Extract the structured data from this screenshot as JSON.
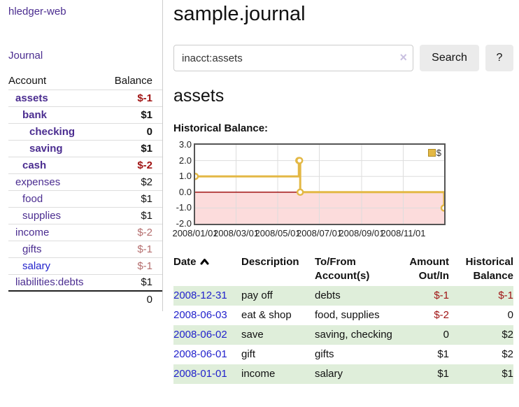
{
  "app": {
    "title": "hledger-web"
  },
  "colors": {
    "link_purple": "#4b2d90",
    "link_blue": "#2222cc",
    "negative_strong": "#a01414",
    "negative_soft": "#b56e6e",
    "row_green": "#dfeeda",
    "chart_line_gold": "#e3b845",
    "chart_negative_fill": "#fcdcdc",
    "chart_zero_line": "#990000"
  },
  "sidebar": {
    "nav": [
      {
        "label": "Journal"
      }
    ],
    "accounts_table": {
      "headers": {
        "account": "Account",
        "balance": "Balance"
      },
      "rows": [
        {
          "name": "assets",
          "balance": "$-1",
          "level": 1,
          "bold": true,
          "neg": "strong",
          "link_color": "purple"
        },
        {
          "name": "bank",
          "balance": "$1",
          "level": 2,
          "bold": true,
          "neg": "none",
          "link_color": "purple"
        },
        {
          "name": "checking",
          "balance": "0",
          "level": 3,
          "bold": true,
          "neg": "none",
          "link_color": "purple"
        },
        {
          "name": "saving",
          "balance": "$1",
          "level": 3,
          "bold": true,
          "neg": "none",
          "link_color": "purple"
        },
        {
          "name": "cash",
          "balance": "$-2",
          "level": 2,
          "bold": true,
          "neg": "strong",
          "link_color": "purple"
        },
        {
          "name": "expenses",
          "balance": "$2",
          "level": 1,
          "bold": false,
          "neg": "none",
          "link_color": "purple"
        },
        {
          "name": "food",
          "balance": "$1",
          "level": 2,
          "bold": false,
          "neg": "none",
          "link_color": "purple"
        },
        {
          "name": "supplies",
          "balance": "$1",
          "level": 2,
          "bold": false,
          "neg": "none",
          "link_color": "purple"
        },
        {
          "name": "income",
          "balance": "$-2",
          "level": 1,
          "bold": false,
          "neg": "soft",
          "link_color": "purple"
        },
        {
          "name": "gifts",
          "balance": "$-1",
          "level": 2,
          "bold": false,
          "neg": "soft",
          "link_color": "purple"
        },
        {
          "name": "salary",
          "balance": "$-1",
          "level": 2,
          "bold": false,
          "neg": "soft",
          "link_color": "blue"
        },
        {
          "name": "liabilities:debts",
          "balance": "$1",
          "level": 1,
          "bold": false,
          "neg": "none",
          "link_color": "purple"
        }
      ],
      "total": "0"
    }
  },
  "main": {
    "title": "sample.journal",
    "search": {
      "value": "inacct:assets",
      "clear_icon": "×",
      "button_label": "Search",
      "help_label": "?"
    },
    "account_heading": "assets",
    "register_table": {
      "headers": [
        "Date",
        "Description",
        "To/From Account(s)",
        "Amount Out/In",
        "Historical Balance"
      ],
      "sort_column": "Date",
      "sort_direction": "ascending",
      "rows": [
        {
          "date": "2008-12-31",
          "description": "pay off",
          "accounts": "debts",
          "amount": "$-1",
          "amount_negative": true,
          "balance": "$-1",
          "balance_negative": true
        },
        {
          "date": "2008-06-03",
          "description": "eat & shop",
          "accounts": "food, supplies",
          "amount": "$-2",
          "amount_negative": true,
          "balance": "0",
          "balance_negative": false
        },
        {
          "date": "2008-06-02",
          "description": "save",
          "accounts": "saving, checking",
          "amount": "0",
          "amount_negative": false,
          "balance": "$2",
          "balance_negative": false
        },
        {
          "date": "2008-06-01",
          "description": "gift",
          "accounts": "gifts",
          "amount": "$1",
          "amount_negative": false,
          "balance": "$2",
          "balance_negative": false
        },
        {
          "date": "2008-01-01",
          "description": "income",
          "accounts": "salary",
          "amount": "$1",
          "amount_negative": false,
          "balance": "$1",
          "balance_negative": false
        }
      ]
    }
  },
  "chart_data": {
    "type": "line",
    "title": "Historical Balance:",
    "step": "after",
    "legend": [
      {
        "label": "$",
        "color": "#e3b845"
      }
    ],
    "legend_position": "top-right",
    "grid": true,
    "x": [
      "2008-01-01",
      "2008-06-01",
      "2008-06-02",
      "2008-06-03",
      "2008-12-31"
    ],
    "values": [
      1,
      2,
      2,
      0,
      -1
    ],
    "xlim": [
      "2008-01-01",
      "2008-12-31"
    ],
    "ylim": [
      -2,
      3
    ],
    "x_ticks": [
      "2008/01/01",
      "2008/03/01",
      "2008/05/01",
      "2008/07/01",
      "2008/09/01",
      "2008/11/01"
    ],
    "y_ticks": [
      "3.0",
      "2.0",
      "1.0",
      "0.0",
      "-1.0",
      "-2.0"
    ],
    "negative_region_shaded": true
  }
}
